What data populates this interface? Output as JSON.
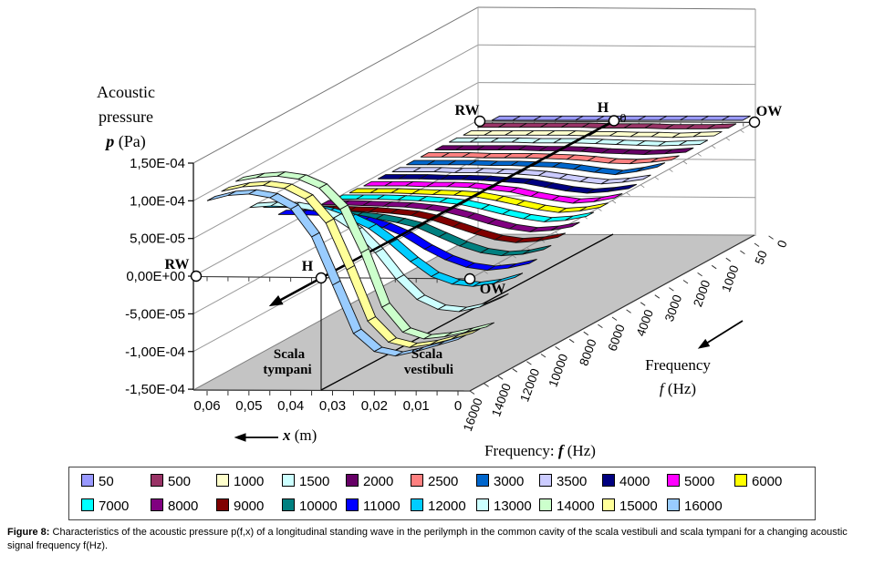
{
  "figure": {
    "value_axis": {
      "tick_labels": [
        "1,50E-04",
        "1,00E-04",
        "5,00E-05",
        "0,00E+00",
        "-5,00E-05",
        "-1,00E-04",
        "-1,50E-04"
      ]
    },
    "x_axis": {
      "tick_labels": [
        "0,06",
        "0,05",
        "0,04",
        "0,03",
        "0,02",
        "0,01",
        "0"
      ]
    },
    "freq_axis": {
      "tick_labels": [
        "16000",
        "14000",
        "12000",
        "10000",
        "8000",
        "6000",
        "4000",
        "3000",
        "2000",
        "1000",
        "50",
        "0"
      ]
    },
    "annotations": {
      "rw": "RW",
      "h": "H",
      "ow": "OW",
      "zero_mark": "0",
      "scala_tympani_1": "Scala",
      "scala_tympani_2": "tympani",
      "scala_vestibuli_1": "Scala",
      "scala_vestibuli_2": "vestibuli"
    }
  },
  "labels": {
    "y_title_1": "Acoustic",
    "y_title_2": "pressure",
    "y_title_var": "p",
    "y_title_unit": " (Pa)",
    "x_title_var": "x",
    "x_title_unit": " (m)",
    "freq_bottom_prefix": "Frequency: ",
    "f_var": "f",
    "f_unit": " (Hz)",
    "freq_right_word": "Frequency"
  },
  "caption": {
    "figure_label": "Figure 8:",
    "text": " Characteristics of the acoustic pressure p(f,x) of a longitudinal standing wave in the perilymph in the common cavity of the scala vestibuli and scala tympani for a changing acoustic signal frequency f(Hz)."
  },
  "chart_data": {
    "type": "line",
    "projection": "3d-ribbon",
    "title": "Acoustic pressure p(f,x) of a longitudinal standing wave in the perilymph",
    "value_axis_label": "Acoustic pressure p (Pa)",
    "x_axis_label": "x (m)",
    "series_axis_label": "Frequency f (Hz)",
    "value_range": [
      -0.00015,
      0.00015
    ],
    "x_m": [
      0.06,
      0.055,
      0.05,
      0.045,
      0.04,
      0.035,
      0.03,
      0.025,
      0.02,
      0.015,
      0.01,
      0.005,
      0
    ],
    "values_unit": "1e-4 Pa",
    "legend_position": "bottom",
    "series": [
      {
        "name": "50",
        "color": "#9999FF",
        "values": [
          0,
          0,
          0,
          0,
          0,
          0,
          0,
          0,
          0,
          0,
          0,
          0,
          0
        ]
      },
      {
        "name": "500",
        "color": "#993366",
        "values": [
          0.01,
          0.01,
          0.01,
          0.01,
          0.01,
          0.01,
          0,
          0,
          0,
          -0.01,
          -0.01,
          -0.01,
          0
        ]
      },
      {
        "name": "1000",
        "color": "#FFFFCC",
        "values": [
          0.01,
          0.01,
          0.01,
          0.01,
          0.01,
          0.01,
          0,
          0,
          -0.01,
          -0.01,
          -0.02,
          -0.01,
          0
        ]
      },
      {
        "name": "1500",
        "color": "#CCFFFF",
        "values": [
          0.02,
          0.02,
          0.02,
          0.02,
          0.01,
          0.01,
          0.01,
          0,
          -0.01,
          -0.02,
          -0.03,
          -0.02,
          -0.01
        ]
      },
      {
        "name": "2000",
        "color": "#660066",
        "values": [
          0.02,
          0.02,
          0.02,
          0.02,
          0.02,
          0.01,
          0.01,
          0,
          -0.02,
          -0.03,
          -0.04,
          -0.03,
          -0.01
        ]
      },
      {
        "name": "2500",
        "color": "#FF8080",
        "values": [
          0.03,
          0.03,
          0.03,
          0.02,
          0.02,
          0.02,
          0.01,
          0,
          -0.02,
          -0.05,
          -0.06,
          -0.04,
          -0.01
        ]
      },
      {
        "name": "3000",
        "color": "#0066CC",
        "values": [
          0.03,
          0.03,
          0.03,
          0.03,
          0.02,
          0.02,
          0.01,
          0,
          -0.03,
          -0.07,
          -0.1,
          -0.06,
          0
        ]
      },
      {
        "name": "3500",
        "color": "#CCCCFF",
        "values": [
          0.04,
          0.04,
          0.04,
          0.03,
          0.03,
          0.02,
          0.01,
          -0.01,
          -0.05,
          -0.09,
          -0.12,
          -0.1,
          -0.06
        ]
      },
      {
        "name": "4000",
        "color": "#000080",
        "values": [
          0.05,
          0.05,
          0.05,
          0.04,
          0.04,
          0.03,
          0.01,
          -0.01,
          -0.06,
          -0.11,
          -0.14,
          -0.12,
          -0.08
        ]
      },
      {
        "name": "5000",
        "color": "#FF00FF",
        "values": [
          0.06,
          0.06,
          0.06,
          0.05,
          0.05,
          0.04,
          0.01,
          -0.02,
          -0.08,
          -0.13,
          -0.17,
          -0.15,
          -0.1
        ]
      },
      {
        "name": "6000",
        "color": "#FFFF00",
        "values": [
          0.07,
          0.07,
          0.07,
          0.06,
          0.05,
          0.04,
          0.02,
          -0.03,
          -0.09,
          -0.15,
          -0.19,
          -0.17,
          -0.12
        ]
      },
      {
        "name": "7000",
        "color": "#00FFFF",
        "values": [
          0.09,
          0.09,
          0.09,
          0.08,
          0.07,
          0.05,
          0.02,
          -0.04,
          -0.11,
          -0.17,
          -0.21,
          -0.19,
          -0.14
        ]
      },
      {
        "name": "8000",
        "color": "#800080",
        "values": [
          0.12,
          0.12,
          0.11,
          0.1,
          0.09,
          0.06,
          0.02,
          -0.05,
          -0.13,
          -0.2,
          -0.24,
          -0.22,
          -0.17
        ]
      },
      {
        "name": "9000",
        "color": "#800000",
        "values": [
          0.15,
          0.15,
          0.14,
          0.13,
          0.11,
          0.08,
          0.02,
          -0.07,
          -0.16,
          -0.24,
          -0.28,
          -0.26,
          -0.21
        ]
      },
      {
        "name": "10000",
        "color": "#008080",
        "values": [
          0.2,
          0.2,
          0.19,
          0.17,
          0.14,
          0.09,
          0.02,
          -0.1,
          -0.22,
          -0.31,
          -0.35,
          -0.33,
          -0.27
        ]
      },
      {
        "name": "11000",
        "color": "#0000FF",
        "values": [
          0.3,
          0.3,
          0.29,
          0.26,
          0.21,
          0.13,
          0.01,
          -0.16,
          -0.3,
          -0.4,
          -0.44,
          -0.41,
          -0.35
        ]
      },
      {
        "name": "12000",
        "color": "#00CCFF",
        "values": [
          0.5,
          0.5,
          0.48,
          0.43,
          0.35,
          0.22,
          0.02,
          -0.22,
          -0.42,
          -0.52,
          -0.55,
          -0.51,
          -0.43
        ]
      },
      {
        "name": "13000",
        "color": "#CCFFFF",
        "values": [
          0.6,
          0.62,
          0.61,
          0.56,
          0.46,
          0.28,
          0,
          -0.35,
          -0.62,
          -0.75,
          -0.78,
          -0.72,
          -0.6
        ]
      },
      {
        "name": "14000",
        "color": "#CCFFCC",
        "values": [
          1.05,
          1.1,
          1.12,
          1.08,
          0.96,
          0.68,
          0.1,
          -0.62,
          -0.95,
          -1.04,
          -1.01,
          -0.95,
          -0.88
        ]
      },
      {
        "name": "15000",
        "color": "#FFFF99",
        "values": [
          1.02,
          1.08,
          1.1,
          1.06,
          0.92,
          0.6,
          -0.02,
          -0.7,
          -0.98,
          -1.05,
          -1.01,
          -0.94,
          -0.86
        ]
      },
      {
        "name": "16000",
        "color": "#99CCFF",
        "values": [
          1,
          1.07,
          1.09,
          1.04,
          0.89,
          0.52,
          -0.12,
          -0.76,
          -1,
          -1.06,
          -1,
          -0.92,
          -0.84
        ]
      }
    ]
  }
}
